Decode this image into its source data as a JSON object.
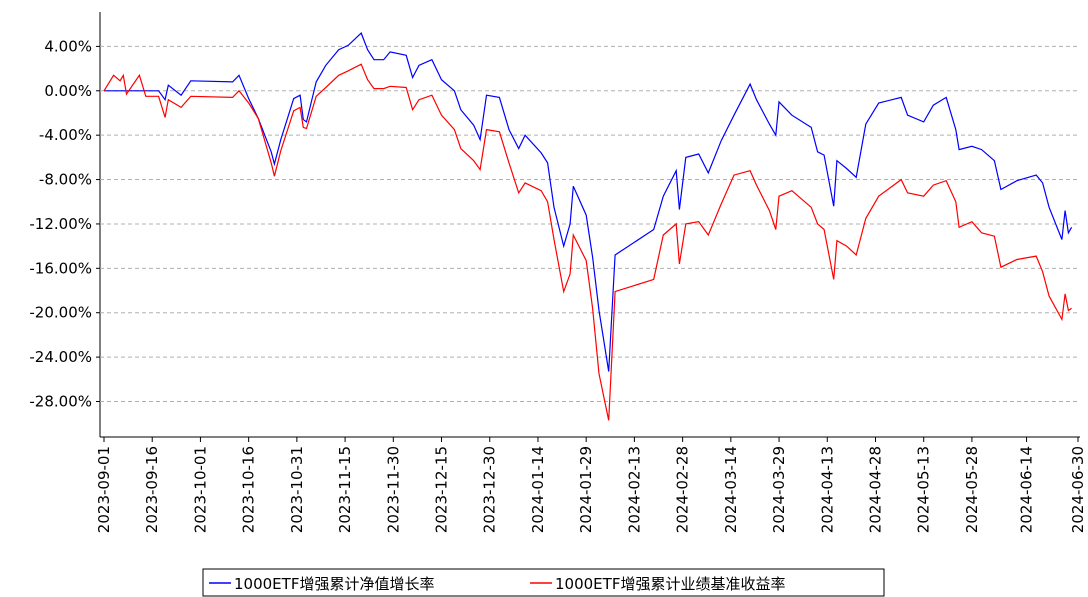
{
  "chart_data": {
    "type": "line",
    "x": [
      "2023-09-01",
      "2023-09-04",
      "2023-09-06",
      "2023-09-07",
      "2023-09-08",
      "2023-09-12",
      "2023-09-14",
      "2023-09-18",
      "2023-09-20",
      "2023-09-21",
      "2023-09-25",
      "2023-09-28",
      "2023-10-11",
      "2023-10-13",
      "2023-10-16",
      "2023-10-19",
      "2023-10-23",
      "2023-10-24",
      "2023-10-26",
      "2023-10-30",
      "2023-11-01",
      "2023-11-02",
      "2023-11-03",
      "2023-11-06",
      "2023-11-09",
      "2023-11-13",
      "2023-11-16",
      "2023-11-20",
      "2023-11-22",
      "2023-11-24",
      "2023-11-27",
      "2023-11-29",
      "2023-12-04",
      "2023-12-06",
      "2023-12-08",
      "2023-12-12",
      "2023-12-15",
      "2023-12-19",
      "2023-12-21",
      "2023-12-25",
      "2023-12-27",
      "2023-12-29",
      "2024-01-02",
      "2024-01-05",
      "2024-01-08",
      "2024-01-10",
      "2024-01-15",
      "2024-01-17",
      "2024-01-19",
      "2024-01-22",
      "2024-01-24",
      "2024-01-25",
      "2024-01-29",
      "2024-01-31",
      "2024-02-02",
      "2024-02-05",
      "2024-02-07",
      "2024-02-19",
      "2024-02-22",
      "2024-02-26",
      "2024-02-27",
      "2024-02-29",
      "2024-03-04",
      "2024-03-07",
      "2024-03-11",
      "2024-03-15",
      "2024-03-20",
      "2024-03-22",
      "2024-03-26",
      "2024-03-28",
      "2024-03-29",
      "2024-04-02",
      "2024-04-08",
      "2024-04-10",
      "2024-04-12",
      "2024-04-15",
      "2024-04-16",
      "2024-04-19",
      "2024-04-22",
      "2024-04-25",
      "2024-04-29",
      "2024-05-06",
      "2024-05-08",
      "2024-05-13",
      "2024-05-16",
      "2024-05-20",
      "2024-05-23",
      "2024-05-24",
      "2024-05-28",
      "2024-05-31",
      "2024-06-04",
      "2024-06-06",
      "2024-06-11",
      "2024-06-17",
      "2024-06-19",
      "2024-06-21",
      "2024-06-25",
      "2024-06-26",
      "2024-06-27",
      "2024-06-28"
    ],
    "series": [
      {
        "name": "1000ETF增强累计净值增长率",
        "color": "#0000ff",
        "values": [
          0,
          0,
          0,
          0,
          0,
          0,
          0,
          0,
          -0.8,
          0.5,
          -0.4,
          0.9,
          0.8,
          1.4,
          -0.7,
          -2.5,
          -5.5,
          -6.6,
          -4.4,
          -0.7,
          -0.4,
          -2.6,
          -2.8,
          0.8,
          2.3,
          3.7,
          4.1,
          5.2,
          3.7,
          2.8,
          2.8,
          3.5,
          3.2,
          1.2,
          2.3,
          2.8,
          1.0,
          0.0,
          -1.7,
          -3.1,
          -4.4,
          -0.4,
          -0.6,
          -3.5,
          -5.2,
          -4.0,
          -5.6,
          -6.5,
          -10.5,
          -14.0,
          -12.0,
          -8.6,
          -11.2,
          -15.0,
          -19.8,
          -25.3,
          -14.8,
          -12.5,
          -9.5,
          -7.2,
          -10.7,
          -6.0,
          -5.7,
          -7.4,
          -4.5,
          -2.2,
          0.6,
          -0.8,
          -3.0,
          -4.0,
          -1.0,
          -2.2,
          -3.3,
          -5.5,
          -5.8,
          -10.4,
          -6.3,
          -7.0,
          -7.8,
          -3.0,
          -1.1,
          -0.6,
          -2.2,
          -2.8,
          -1.3,
          -0.6,
          -3.5,
          -5.3,
          -5.0,
          -5.3,
          -6.3,
          -8.9,
          -8.1,
          -7.6,
          -8.3,
          -10.5,
          -13.4,
          -10.8,
          -12.8,
          -12.3
        ]
      },
      {
        "name": "1000ETF增强累计业绩基准收益率",
        "color": "#ff0000",
        "values": [
          0,
          1.4,
          0.9,
          1.4,
          -0.3,
          1.4,
          -0.5,
          -0.5,
          -2.4,
          -0.8,
          -1.5,
          -0.5,
          -0.6,
          0,
          -1.1,
          -2.5,
          -6.5,
          -7.7,
          -5.4,
          -1.8,
          -1.5,
          -3.3,
          -3.4,
          -0.5,
          0.3,
          1.4,
          1.8,
          2.4,
          1.0,
          0.2,
          0.2,
          0.4,
          0.3,
          -1.7,
          -0.8,
          -0.4,
          -2.2,
          -3.5,
          -5.2,
          -6.3,
          -7.1,
          -3.5,
          -3.7,
          -6.5,
          -9.2,
          -8.3,
          -9.0,
          -10.0,
          -13.4,
          -18.1,
          -16.5,
          -13.0,
          -15.3,
          -19.6,
          -25.5,
          -29.7,
          -18.1,
          -17.0,
          -13.0,
          -12.0,
          -15.6,
          -12.0,
          -11.8,
          -13.0,
          -10.2,
          -7.6,
          -7.2,
          -8.5,
          -10.8,
          -12.5,
          -9.5,
          -9.0,
          -10.5,
          -12.0,
          -12.5,
          -17.0,
          -13.5,
          -14.0,
          -14.8,
          -11.5,
          -9.5,
          -8.0,
          -9.2,
          -9.5,
          -8.5,
          -8.1,
          -10.0,
          -12.3,
          -11.8,
          -12.8,
          -13.1,
          -15.9,
          -15.2,
          -14.9,
          -16.3,
          -18.5,
          -20.6,
          -18.3,
          -19.8,
          -19.6
        ]
      }
    ],
    "xlim": [
      "2023-09-01",
      "2024-06-30"
    ],
    "xticks": [
      "2023-09-01",
      "2023-09-16",
      "2023-10-01",
      "2023-10-16",
      "2023-10-31",
      "2023-11-15",
      "2023-11-30",
      "2023-12-15",
      "2023-12-30",
      "2024-01-14",
      "2024-01-29",
      "2024-02-13",
      "2024-02-28",
      "2024-03-14",
      "2024-03-29",
      "2024-04-13",
      "2024-04-28",
      "2024-05-13",
      "2024-05-28",
      "2024-06-14",
      "2024-06-30"
    ],
    "ylim": [
      -31.2,
      7.1
    ],
    "yticks": [
      {
        "value": -28,
        "label": "-28.00%"
      },
      {
        "value": -24,
        "label": "-24.00%"
      },
      {
        "value": -20,
        "label": "-20.00%"
      },
      {
        "value": -16,
        "label": "-16.00%"
      },
      {
        "value": -12,
        "label": "-12.00%"
      },
      {
        "value": -8,
        "label": "-8.00%"
      },
      {
        "value": -4,
        "label": "-4.00%"
      },
      {
        "value": 0,
        "label": "0.00%"
      },
      {
        "value": 4,
        "label": "4.00%"
      }
    ],
    "grid": true
  }
}
